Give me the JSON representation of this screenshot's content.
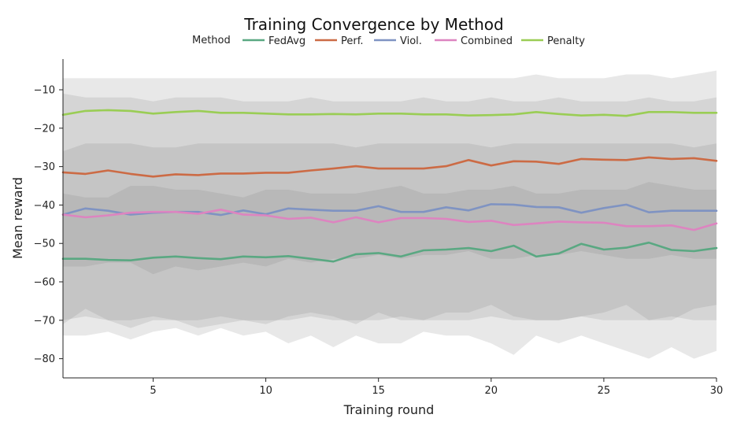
{
  "chart_data": {
    "type": "line",
    "title": "Training Convergence by Method",
    "xlabel": "Training round",
    "ylabel": "Mean reward",
    "xlim": [
      1,
      30
    ],
    "ylim": [
      -85,
      -2
    ],
    "x_ticks": [
      5,
      10,
      15,
      20,
      25,
      30
    ],
    "y_ticks": [
      -10,
      -20,
      -30,
      -40,
      -50,
      -60,
      -70,
      -80
    ],
    "legend_title": "Method",
    "legend_placement": "top-center",
    "grid": false,
    "x": [
      1,
      2,
      3,
      4,
      5,
      6,
      7,
      8,
      9,
      10,
      11,
      12,
      13,
      14,
      15,
      16,
      17,
      18,
      19,
      20,
      21,
      22,
      23,
      24,
      25,
      26,
      27,
      28,
      29,
      30
    ],
    "series": [
      {
        "name": "FedAvg",
        "color": "#5aa882",
        "values": [
          -54.0,
          -54.0,
          -54.3,
          -54.4,
          -53.7,
          -53.4,
          -53.8,
          -54.1,
          -53.4,
          -53.6,
          -53.3,
          -54.0,
          -54.7,
          -52.8,
          -52.5,
          -53.4,
          -51.8,
          -51.6,
          -51.2,
          -52.0,
          -50.6,
          -53.4,
          -52.6,
          -50.1,
          -51.6,
          -51.1,
          -49.8,
          -51.7,
          -52.0,
          -51.2
        ],
        "band": {
          "lower": [
            -71,
            -67,
            -70,
            -72,
            -70,
            -70,
            -72,
            -71,
            -70,
            -71,
            -69,
            -68,
            -69,
            -71,
            -68,
            -70,
            -70,
            -68,
            -68,
            -66,
            -69,
            -70,
            -70,
            -69,
            -68,
            -66,
            -70,
            -70,
            -67,
            -66
          ],
          "upper": [
            -37,
            -38,
            -38,
            -35,
            -35,
            -36,
            -36,
            -37,
            -38,
            -36,
            -36,
            -37,
            -37,
            -37,
            -36,
            -35,
            -37,
            -37,
            -36,
            -36,
            -35,
            -37,
            -37,
            -36,
            -36,
            -36,
            -34,
            -35,
            -36,
            -36
          ]
        }
      },
      {
        "name": "Perf.",
        "color": "#cc6b45",
        "values": [
          -31.5,
          -31.9,
          -31.0,
          -31.9,
          -32.6,
          -32.0,
          -32.2,
          -31.8,
          -31.8,
          -31.6,
          -31.6,
          -31.0,
          -30.5,
          -29.9,
          -30.5,
          -30.5,
          -30.5,
          -29.9,
          -28.3,
          -29.7,
          -28.6,
          -28.7,
          -29.3,
          -28.0,
          -28.2,
          -28.3,
          -27.6,
          -28.0,
          -27.8,
          -28.5
        ]
      },
      {
        "name": "Viol.",
        "color": "#7f93c2",
        "values": [
          -42.5,
          -40.9,
          -41.5,
          -42.5,
          -42.0,
          -41.8,
          -41.8,
          -42.6,
          -41.4,
          -42.4,
          -40.9,
          -41.2,
          -41.5,
          -41.5,
          -40.3,
          -41.8,
          -41.8,
          -40.6,
          -41.4,
          -39.8,
          -39.9,
          -40.5,
          -40.6,
          -42.0,
          -40.8,
          -39.9,
          -41.9,
          -41.5,
          -41.5,
          -41.5
        ],
        "band": {
          "lower": [
            -56,
            -56,
            -55,
            -55,
            -58,
            -56,
            -57,
            -56,
            -55,
            -56,
            -54,
            -55,
            -54,
            -54,
            -53,
            -54,
            -53,
            -53,
            -52,
            -54,
            -54,
            -53,
            -53,
            -52,
            -53,
            -54,
            -54,
            -53,
            -54,
            -54
          ],
          "upper": [
            -26,
            -24,
            -24,
            -24,
            -25,
            -25,
            -24,
            -24,
            -24,
            -24,
            -24,
            -24,
            -24,
            -25,
            -24,
            -24,
            -24,
            -24,
            -24,
            -25,
            -24,
            -24,
            -24,
            -24,
            -24,
            -24,
            -24,
            -24,
            -25,
            -24
          ]
        }
      },
      {
        "name": "Combined",
        "color": "#dd84c0",
        "values": [
          -42.5,
          -43.2,
          -42.7,
          -42.0,
          -41.8,
          -41.8,
          -42.3,
          -41.2,
          -42.5,
          -42.7,
          -43.6,
          -43.3,
          -44.5,
          -43.2,
          -44.5,
          -43.4,
          -43.4,
          -43.6,
          -44.4,
          -44.1,
          -45.2,
          -44.8,
          -44.3,
          -44.5,
          -44.6,
          -45.5,
          -45.5,
          -45.3,
          -46.5,
          -44.8
        ],
        "band": {
          "lower": [
            -74,
            -74,
            -73,
            -75,
            -73,
            -72,
            -74,
            -72,
            -74,
            -73,
            -76,
            -74,
            -77,
            -74,
            -76,
            -76,
            -73,
            -74,
            -74,
            -76,
            -79,
            -74,
            -76,
            -74,
            -76,
            -78,
            -80,
            -77,
            -80,
            -78
          ],
          "upper": [
            -11,
            -12,
            -12,
            -12,
            -13,
            -12,
            -12,
            -12,
            -13,
            -13,
            -13,
            -12,
            -13,
            -13,
            -13,
            -13,
            -12,
            -13,
            -13,
            -12,
            -13,
            -13,
            -12,
            -13,
            -13,
            -13,
            -12,
            -13,
            -13,
            -12
          ]
        }
      },
      {
        "name": "Penalty",
        "color": "#9acd55",
        "values": [
          -16.5,
          -15.5,
          -15.3,
          -15.5,
          -16.2,
          -15.8,
          -15.5,
          -16.0,
          -16.0,
          -16.2,
          -16.4,
          -16.4,
          -16.3,
          -16.4,
          -16.2,
          -16.2,
          -16.4,
          -16.4,
          -16.7,
          -16.6,
          -16.4,
          -15.8,
          -16.3,
          -16.7,
          -16.5,
          -16.8,
          -15.8,
          -15.8,
          -16.0,
          -16.0
        ],
        "band": {
          "lower": [
            -70,
            -69,
            -70,
            -70,
            -69,
            -70,
            -70,
            -69,
            -70,
            -70,
            -70,
            -69,
            -70,
            -70,
            -70,
            -69,
            -70,
            -70,
            -70,
            -69,
            -70,
            -70,
            -70,
            -69,
            -70,
            -70,
            -70,
            -69,
            -70,
            -70
          ],
          "upper": [
            -7,
            -7,
            -7,
            -7,
            -7,
            -7,
            -7,
            -7,
            -7,
            -7,
            -7,
            -7,
            -7,
            -7,
            -7,
            -7,
            -7,
            -7,
            -7,
            -7,
            -7,
            -6,
            -7,
            -7,
            -7,
            -6,
            -6,
            -7,
            -6,
            -5
          ]
        }
      }
    ]
  }
}
